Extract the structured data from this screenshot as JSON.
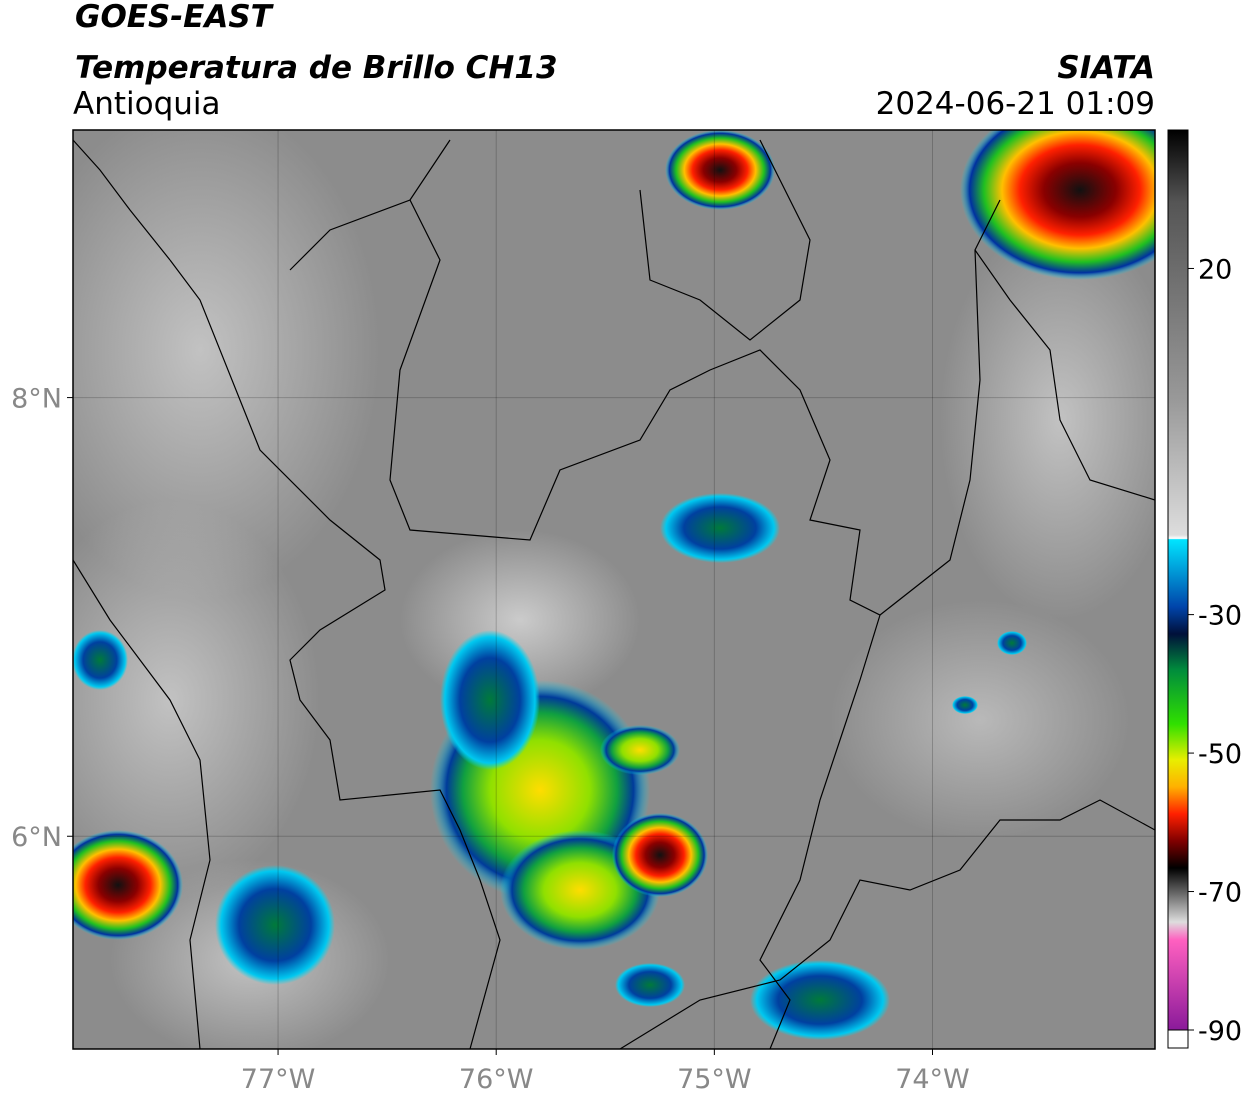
{
  "header": {
    "satellite": "GOES-EAST",
    "product": "Temperatura de Brillo CH13",
    "region": "Antioquia",
    "agency": "SIATA",
    "datetime": "2024-06-21 01:09"
  },
  "map": {
    "lon_range": [
      -77.94,
      -72.98
    ],
    "lat_range": [
      5.03,
      9.22
    ],
    "lon_ticks": [
      {
        "value": -77,
        "label": "77°W"
      },
      {
        "value": -76,
        "label": "76°W"
      },
      {
        "value": -75,
        "label": "75°W"
      },
      {
        "value": -74,
        "label": "74°W"
      }
    ],
    "lat_ticks": [
      {
        "value": 8,
        "label": "8°N"
      },
      {
        "value": 6,
        "label": "6°N"
      }
    ]
  },
  "colorbar": {
    "range": [
      -90,
      40
    ],
    "ticks": [
      20,
      -30,
      -50,
      -70,
      -90
    ]
  }
}
